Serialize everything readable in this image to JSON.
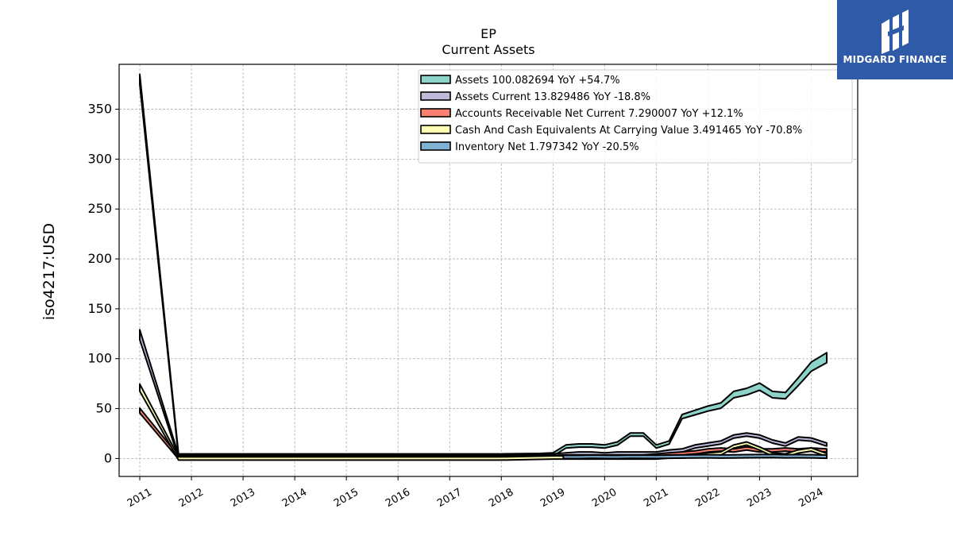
{
  "logo": {
    "text": "MIDGARD FINANCE",
    "icon": "midgard-logo-icon",
    "bg": "#2e5aa8"
  },
  "chart_data": {
    "type": "area",
    "title": "EP",
    "subtitle": "Current  Assets",
    "ylabel": "iso4217:USD",
    "ylim": [
      -18,
      395
    ],
    "yticks": [
      0,
      50,
      100,
      150,
      200,
      250,
      300,
      350
    ],
    "xlim": [
      2010.6,
      2024.9
    ],
    "xticks": [
      2011,
      2012,
      2013,
      2014,
      2015,
      2016,
      2017,
      2018,
      2019,
      2020,
      2021,
      2022,
      2023,
      2024
    ],
    "grid": true,
    "legend_position": "top-right",
    "series": [
      {
        "name": "Assets  100.082694 YoY +54.7%",
        "color": "#8dd3c7",
        "x": [
          2011.0,
          2011.75,
          2012.0,
          2013.0,
          2014.0,
          2015.0,
          2016.0,
          2017.0,
          2018.0,
          2018.75,
          2019.0,
          2019.25,
          2019.5,
          2019.75,
          2020.0,
          2020.25,
          2020.5,
          2020.75,
          2021.0,
          2021.25,
          2021.5,
          2021.75,
          2022.0,
          2022.25,
          2022.5,
          2022.75,
          2023.0,
          2023.25,
          2023.5,
          2023.75,
          2024.0,
          2024.3
        ],
        "values": [
          380,
          3,
          3,
          3,
          3,
          3,
          3,
          3,
          3,
          3.5,
          4,
          12,
          13,
          13,
          12,
          15,
          24,
          24,
          12,
          16,
          42,
          46,
          50,
          53,
          64,
          67,
          72,
          64,
          63,
          77,
          92,
          101
        ]
      },
      {
        "name": "Assets Current  13.829486 YoY -18.8%",
        "color": "#bebada",
        "x": [
          2011.0,
          2011.75,
          2012.0,
          2013.0,
          2014.0,
          2015.0,
          2016.0,
          2017.0,
          2018.0,
          2019.0,
          2019.25,
          2019.5,
          2019.75,
          2020.0,
          2020.25,
          2020.5,
          2020.75,
          2021.0,
          2021.25,
          2021.5,
          2021.75,
          2022.0,
          2022.25,
          2022.5,
          2022.75,
          2023.0,
          2023.25,
          2023.5,
          2023.75,
          2024.0,
          2024.3
        ],
        "values": [
          124,
          2,
          2,
          2,
          2,
          2,
          2,
          2,
          2,
          3,
          4,
          5,
          5,
          4,
          5,
          5,
          5,
          5,
          7,
          8,
          12,
          14,
          16,
          22,
          24,
          22,
          17,
          14,
          20,
          19,
          14
        ]
      },
      {
        "name": "Accounts Receivable Net Current  7.290007 YoY +12.1%",
        "color": "#fb8072",
        "x": [
          2011.0,
          2011.75,
          2012.0,
          2013.0,
          2014.0,
          2015.0,
          2016.0,
          2017.0,
          2018.0,
          2019.0,
          2019.25,
          2019.5,
          2019.75,
          2020.0,
          2020.25,
          2020.5,
          2020.75,
          2021.0,
          2021.25,
          2021.5,
          2021.75,
          2022.0,
          2022.25,
          2022.5,
          2022.75,
          2023.0,
          2023.25,
          2023.5,
          2023.75,
          2024.0,
          2024.3
        ],
        "values": [
          48,
          1,
          1,
          1,
          1,
          1,
          1,
          1,
          1,
          1.5,
          2,
          2,
          2,
          2,
          2,
          2,
          2,
          3,
          4,
          5,
          6,
          8,
          9,
          8,
          10,
          8,
          8,
          9,
          8,
          9,
          8
        ]
      },
      {
        "name": "Cash And Cash Equivalents At Carrying Value  3.491465 YoY -70.8%",
        "color": "#ffffb3",
        "x": [
          2011.0,
          2011.75,
          2012.0,
          2013.0,
          2014.0,
          2015.0,
          2016.0,
          2017.0,
          2018.0,
          2019.0,
          2019.25,
          2019.5,
          2019.75,
          2020.0,
          2020.25,
          2020.5,
          2020.75,
          2021.0,
          2021.25,
          2021.5,
          2021.75,
          2022.0,
          2022.25,
          2022.5,
          2022.75,
          2023.0,
          2023.25,
          2023.5,
          2023.75,
          2024.0,
          2024.3
        ],
        "values": [
          71,
          0,
          0,
          0,
          0,
          0,
          0,
          0,
          0,
          1,
          1,
          1,
          1,
          1,
          1,
          1,
          1,
          1,
          2,
          2,
          3,
          4,
          5,
          12,
          15,
          10,
          4,
          3,
          7,
          9,
          3.5
        ]
      },
      {
        "name": "Inventory Net  1.797342 YoY -20.5%",
        "color": "#80b1d3",
        "x": [
          2019.2,
          2019.5,
          2019.75,
          2020.0,
          2020.25,
          2020.5,
          2020.75,
          2021.0,
          2021.25,
          2021.5,
          2021.75,
          2022.0,
          2022.25,
          2022.5,
          2022.75,
          2023.0,
          2023.25,
          2023.5,
          2023.75,
          2024.0,
          2024.3
        ],
        "values": [
          1.5,
          1.5,
          1.8,
          1.6,
          1.5,
          1.8,
          1.7,
          1.6,
          1.8,
          2.0,
          2.1,
          2.2,
          2.0,
          2.1,
          2.3,
          2.4,
          2.5,
          2.2,
          2.3,
          2.2,
          1.8
        ]
      }
    ]
  }
}
